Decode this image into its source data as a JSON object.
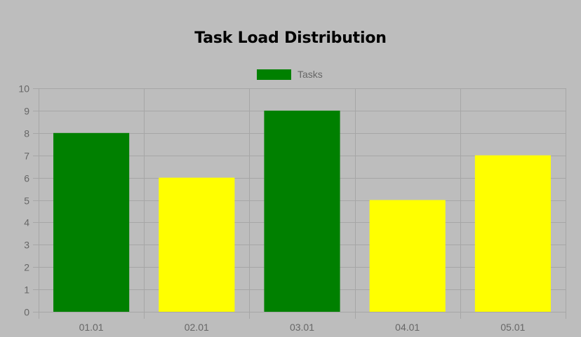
{
  "chart_data": {
    "type": "bar",
    "title": "Task Load Distribution",
    "categories": [
      "01.01",
      "02.01",
      "03.01",
      "04.01",
      "05.01"
    ],
    "series": [
      {
        "name": "Tasks",
        "values": [
          8,
          6,
          9,
          5,
          7
        ],
        "colors": [
          "#008000",
          "#ffff00",
          "#008000",
          "#ffff00",
          "#ffff00"
        ]
      }
    ],
    "legend": {
      "position": "top",
      "label": "Tasks",
      "color": "#008000"
    },
    "ylim": [
      0,
      10
    ],
    "yticks": [
      0,
      1,
      2,
      3,
      4,
      5,
      6,
      7,
      8,
      9,
      10
    ],
    "grid": true,
    "xlabel": "",
    "ylabel": ""
  },
  "colors": {
    "background": "#bdbdbd",
    "grid": "#a6a6a6",
    "axis_text": "#666666"
  }
}
